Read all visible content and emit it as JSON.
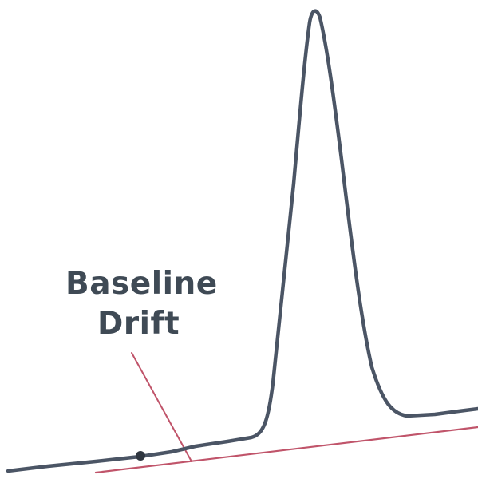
{
  "annotation": {
    "line1": "Baseline",
    "line2": "Drift"
  },
  "colors": {
    "signal": "#4b5565",
    "baseline": "#c0546a",
    "pointer": "#c0546a",
    "label": "#3f4a55",
    "marker": "#2f3640"
  }
}
